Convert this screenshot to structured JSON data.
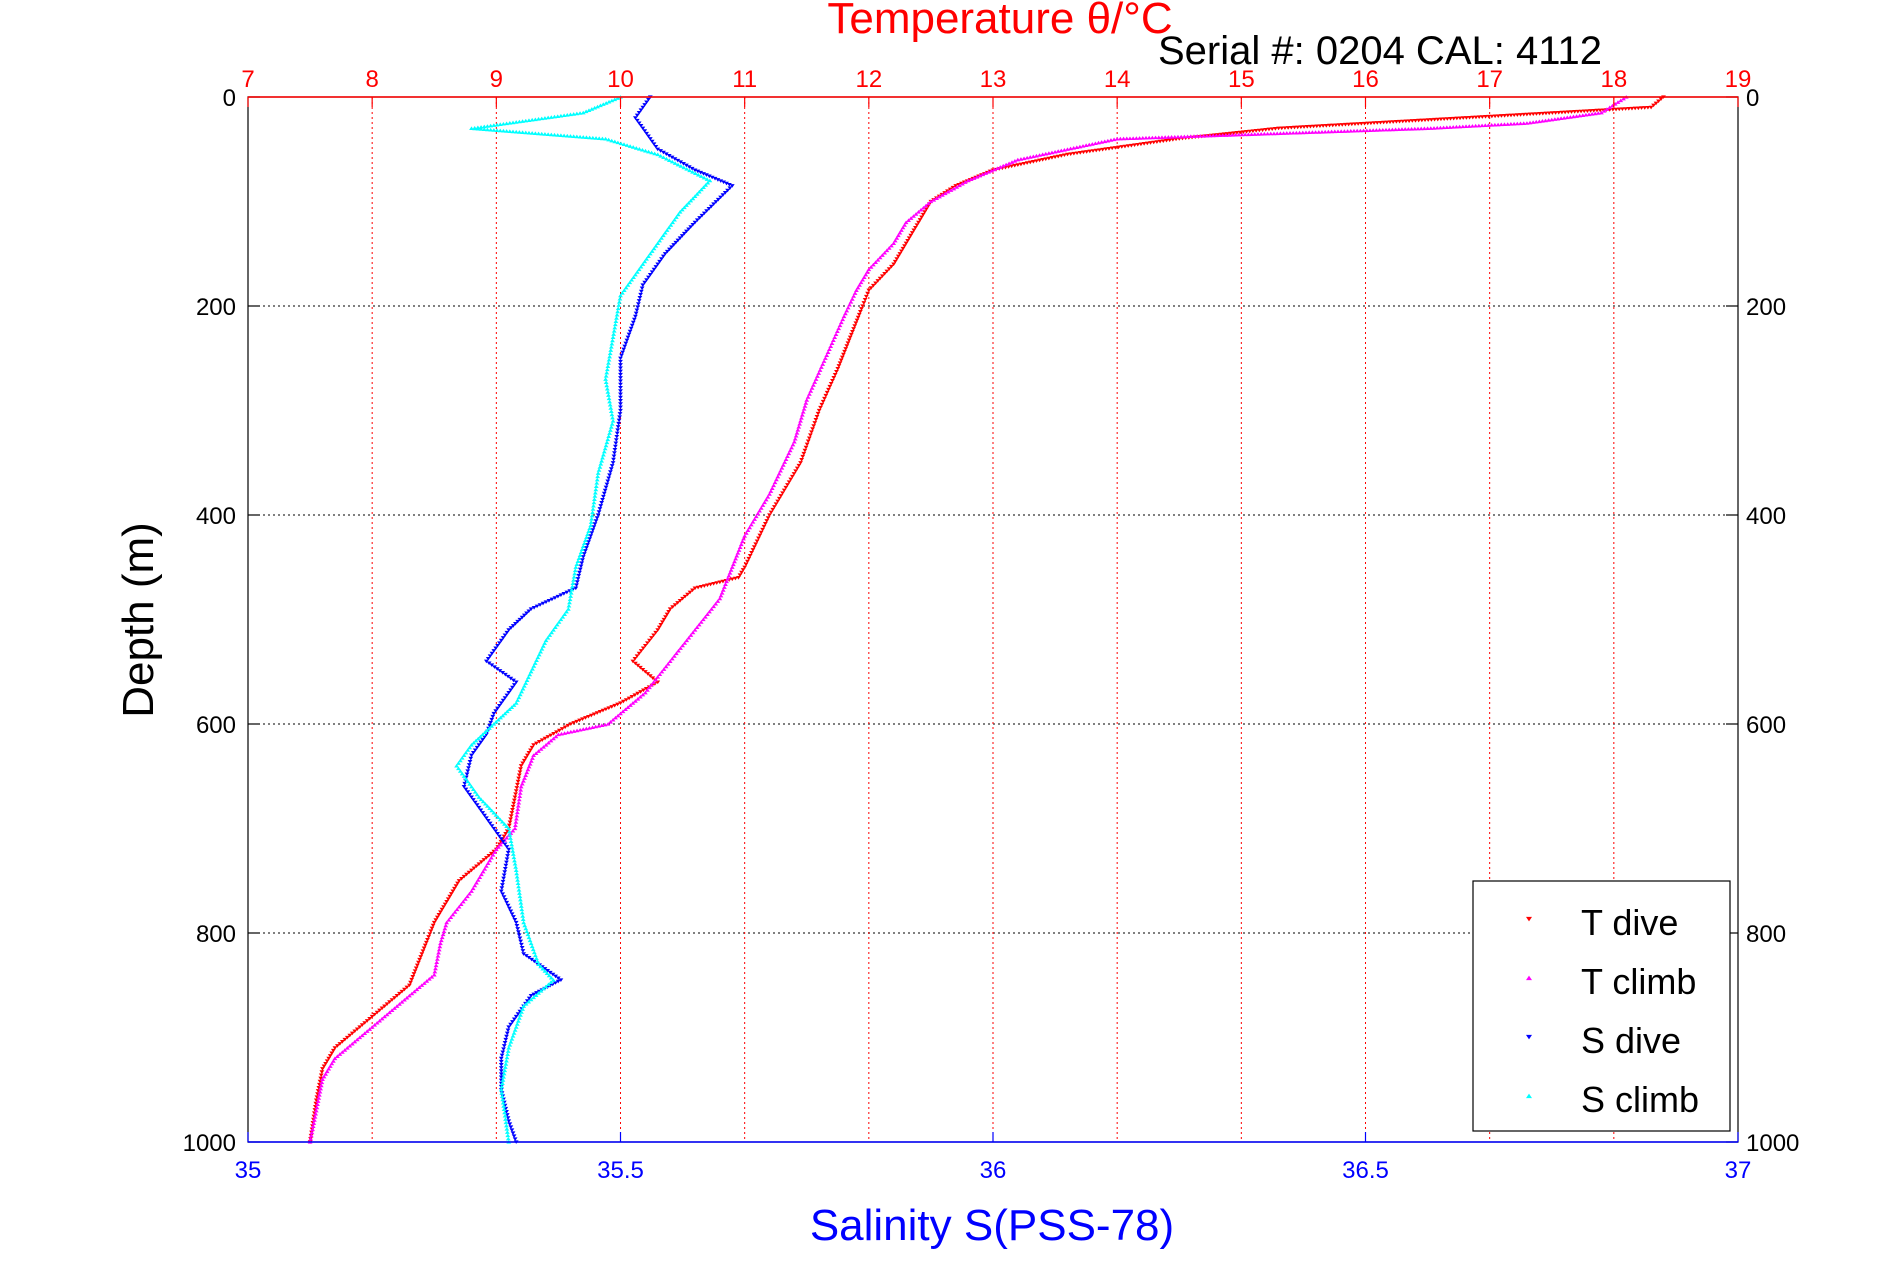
{
  "chart_data": {
    "type": "scatter",
    "title": "Temperature θ/°C",
    "subtitle": "Serial #: 0204  CAL: 4112",
    "ylabel": "Depth (m)",
    "xlabel_bottom": "Salinity S(PSS-78)",
    "xlabel_top": "Temperature θ/°C",
    "ylim": [
      0,
      1000
    ],
    "y_reversed": true,
    "x_bottom_lim": [
      35,
      37
    ],
    "x_top_lim": [
      7,
      19
    ],
    "y_ticks": [
      "0",
      "200",
      "400",
      "600",
      "800",
      "1000"
    ],
    "x_bottom_ticks": [
      "35",
      "35.5",
      "36",
      "36.5",
      "37"
    ],
    "x_top_ticks": [
      "7",
      "8",
      "9",
      "10",
      "11",
      "12",
      "13",
      "14",
      "15",
      "16",
      "17",
      "18",
      "19"
    ],
    "grid": true,
    "legend_position": "bottom-right",
    "colors": {
      "t_dive": "#ff0000",
      "t_climb": "#ff00ff",
      "s_dive": "#0000ff",
      "s_climb": "#00ffff",
      "top_axis": "#ff0000",
      "bottom_axis": "#0000ff"
    },
    "series": [
      {
        "name": "T dive",
        "axis": "top",
        "color": "#ff0000",
        "marker": "triangle-down",
        "points": [
          [
            18.4,
            0
          ],
          [
            18.3,
            10
          ],
          [
            15.3,
            30
          ],
          [
            14.5,
            40
          ],
          [
            13.6,
            55
          ],
          [
            13.0,
            70
          ],
          [
            12.7,
            85
          ],
          [
            12.5,
            100
          ],
          [
            12.4,
            120
          ],
          [
            12.3,
            140
          ],
          [
            12.2,
            160
          ],
          [
            12.0,
            185
          ],
          [
            11.95,
            200
          ],
          [
            11.85,
            230
          ],
          [
            11.75,
            260
          ],
          [
            11.6,
            300
          ],
          [
            11.45,
            350
          ],
          [
            11.2,
            400
          ],
          [
            11.0,
            450
          ],
          [
            10.95,
            460
          ],
          [
            10.6,
            470
          ],
          [
            10.4,
            490
          ],
          [
            10.3,
            510
          ],
          [
            10.1,
            540
          ],
          [
            10.3,
            560
          ],
          [
            10.0,
            580
          ],
          [
            9.6,
            600
          ],
          [
            9.3,
            620
          ],
          [
            9.2,
            640
          ],
          [
            9.15,
            670
          ],
          [
            9.1,
            700
          ],
          [
            9.0,
            720
          ],
          [
            8.7,
            750
          ],
          [
            8.6,
            770
          ],
          [
            8.5,
            790
          ],
          [
            8.4,
            820
          ],
          [
            8.3,
            850
          ],
          [
            8.1,
            870
          ],
          [
            7.9,
            890
          ],
          [
            7.7,
            910
          ],
          [
            7.6,
            930
          ],
          [
            7.55,
            960
          ],
          [
            7.5,
            1000
          ]
        ]
      },
      {
        "name": "T climb",
        "axis": "top",
        "color": "#ff00ff",
        "marker": "triangle-up",
        "points": [
          [
            18.1,
            0
          ],
          [
            17.9,
            15
          ],
          [
            17.3,
            25
          ],
          [
            16.5,
            30
          ],
          [
            14.0,
            40
          ],
          [
            13.2,
            60
          ],
          [
            12.8,
            80
          ],
          [
            12.5,
            100
          ],
          [
            12.3,
            120
          ],
          [
            12.2,
            140
          ],
          [
            12.0,
            165
          ],
          [
            11.9,
            185
          ],
          [
            11.8,
            210
          ],
          [
            11.65,
            250
          ],
          [
            11.5,
            290
          ],
          [
            11.4,
            330
          ],
          [
            11.2,
            380
          ],
          [
            11.0,
            420
          ],
          [
            10.9,
            450
          ],
          [
            10.8,
            480
          ],
          [
            10.6,
            510
          ],
          [
            10.4,
            540
          ],
          [
            10.2,
            570
          ],
          [
            9.9,
            600
          ],
          [
            9.5,
            610
          ],
          [
            9.3,
            630
          ],
          [
            9.2,
            660
          ],
          [
            9.15,
            700
          ],
          [
            9.0,
            720
          ],
          [
            8.8,
            760
          ],
          [
            8.6,
            790
          ],
          [
            8.55,
            810
          ],
          [
            8.5,
            840
          ],
          [
            8.3,
            860
          ],
          [
            8.1,
            880
          ],
          [
            7.9,
            900
          ],
          [
            7.7,
            920
          ],
          [
            7.6,
            940
          ],
          [
            7.55,
            970
          ],
          [
            7.5,
            1000
          ]
        ]
      },
      {
        "name": "S dive",
        "axis": "bottom",
        "color": "#0000ff",
        "marker": "triangle-down",
        "points": [
          [
            35.54,
            0
          ],
          [
            35.52,
            20
          ],
          [
            35.55,
            50
          ],
          [
            35.6,
            70
          ],
          [
            35.65,
            85
          ],
          [
            35.6,
            120
          ],
          [
            35.56,
            150
          ],
          [
            35.53,
            180
          ],
          [
            35.52,
            210
          ],
          [
            35.5,
            250
          ],
          [
            35.5,
            300
          ],
          [
            35.49,
            350
          ],
          [
            35.47,
            400
          ],
          [
            35.45,
            440
          ],
          [
            35.44,
            470
          ],
          [
            35.38,
            490
          ],
          [
            35.35,
            510
          ],
          [
            35.32,
            540
          ],
          [
            35.36,
            560
          ],
          [
            35.33,
            590
          ],
          [
            35.32,
            610
          ],
          [
            35.3,
            630
          ],
          [
            35.29,
            660
          ],
          [
            35.32,
            690
          ],
          [
            35.35,
            720
          ],
          [
            35.34,
            760
          ],
          [
            35.36,
            790
          ],
          [
            35.37,
            820
          ],
          [
            35.42,
            845
          ],
          [
            35.38,
            860
          ],
          [
            35.35,
            890
          ],
          [
            35.34,
            920
          ],
          [
            35.34,
            950
          ],
          [
            35.35,
            980
          ],
          [
            35.36,
            1000
          ]
        ]
      },
      {
        "name": "S climb",
        "axis": "bottom",
        "color": "#00ffff",
        "marker": "triangle-up",
        "points": [
          [
            35.5,
            0
          ],
          [
            35.45,
            15
          ],
          [
            35.3,
            30
          ],
          [
            35.48,
            40
          ],
          [
            35.55,
            55
          ],
          [
            35.62,
            80
          ],
          [
            35.58,
            110
          ],
          [
            35.54,
            150
          ],
          [
            35.5,
            190
          ],
          [
            35.49,
            230
          ],
          [
            35.48,
            270
          ],
          [
            35.49,
            310
          ],
          [
            35.47,
            360
          ],
          [
            35.46,
            410
          ],
          [
            35.44,
            450
          ],
          [
            35.43,
            490
          ],
          [
            35.4,
            520
          ],
          [
            35.38,
            550
          ],
          [
            35.36,
            580
          ],
          [
            35.33,
            600
          ],
          [
            35.3,
            620
          ],
          [
            35.28,
            640
          ],
          [
            35.31,
            670
          ],
          [
            35.35,
            700
          ],
          [
            35.36,
            740
          ],
          [
            35.37,
            790
          ],
          [
            35.39,
            830
          ],
          [
            35.41,
            845
          ],
          [
            35.37,
            870
          ],
          [
            35.35,
            910
          ],
          [
            35.34,
            950
          ],
          [
            35.35,
            1000
          ]
        ]
      }
    ]
  }
}
